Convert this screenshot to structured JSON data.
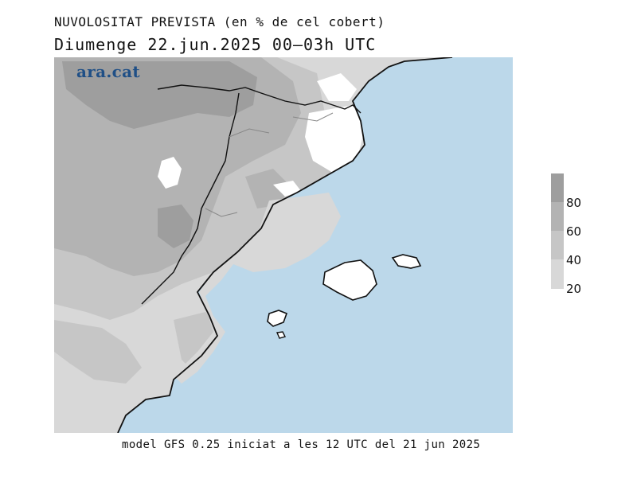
{
  "header": {
    "title": "NUVOLOSITAT PREVISTA (en % de cel cobert)",
    "subtitle": "Diumenge  22.jun.2025 00–03h UTC"
  },
  "logo": {
    "text": "ara.cat"
  },
  "legend": {
    "labels": [
      "80",
      "60",
      "40",
      "20"
    ],
    "colors": [
      "#9e9e9e",
      "#b3b3b3",
      "#c6c6c6",
      "#d8d8d8",
      "#ffffff"
    ]
  },
  "map": {
    "sea_color": "#bcd8ea",
    "coast_color": "#111111",
    "border_color": "#333333",
    "cloud_colors": {
      "c20": "#d8d8d8",
      "c40": "#c6c6c6",
      "c60": "#b3b3b3",
      "c80": "#9e9e9e"
    }
  },
  "footer": {
    "text": "model GFS 0.25 iniciat a les 12 UTC del 21 jun 2025"
  }
}
